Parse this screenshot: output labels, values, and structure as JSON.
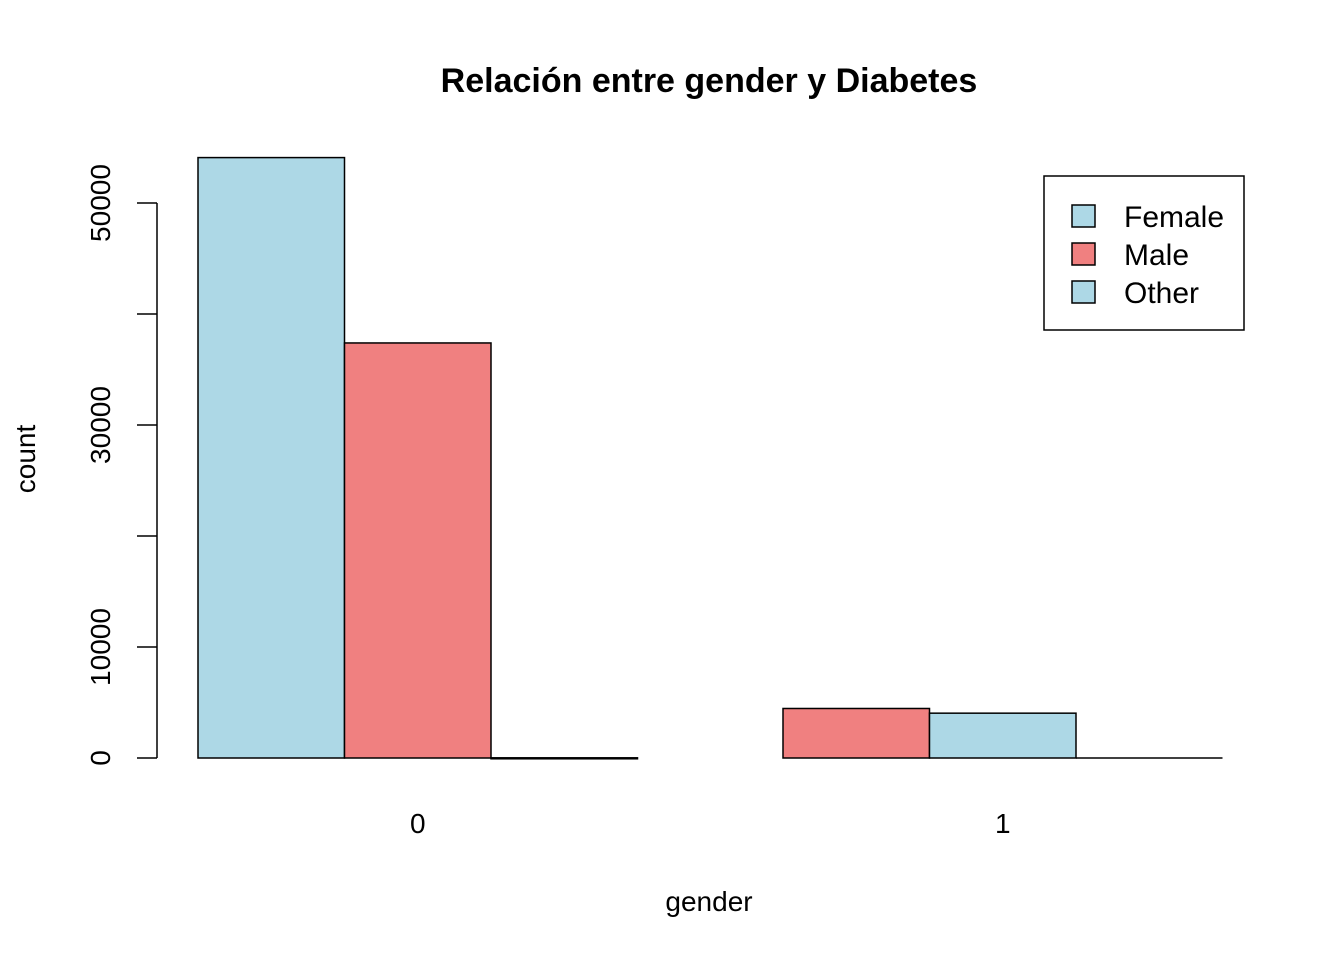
{
  "chart_data": {
    "type": "bar",
    "title": "Relación entre gender y Diabetes",
    "xlabel": "gender",
    "ylabel": "count",
    "categories": [
      "0",
      "1"
    ],
    "ylim": [
      0,
      55000
    ],
    "yticks": [
      0,
      10000,
      30000,
      50000
    ],
    "grid": false,
    "legend_position": "top-right",
    "bars": [
      {
        "category": "0",
        "color": "#ADD8E6",
        "value": 54091
      },
      {
        "category": "0",
        "color": "#F08080",
        "value": 37391
      },
      {
        "category": "0",
        "color": "#ADD8E6",
        "value": 18
      },
      {
        "category": "1",
        "color": "#F08080",
        "value": 4461
      },
      {
        "category": "1",
        "color": "#ADD8E6",
        "value": 4039
      },
      {
        "category": "1",
        "color": "#ADD8E6",
        "value": 0
      }
    ],
    "legend": [
      {
        "name": "Female",
        "color": "#ADD8E6"
      },
      {
        "name": "Male",
        "color": "#F08080"
      },
      {
        "name": "Other",
        "color": "#ADD8E6"
      }
    ]
  }
}
